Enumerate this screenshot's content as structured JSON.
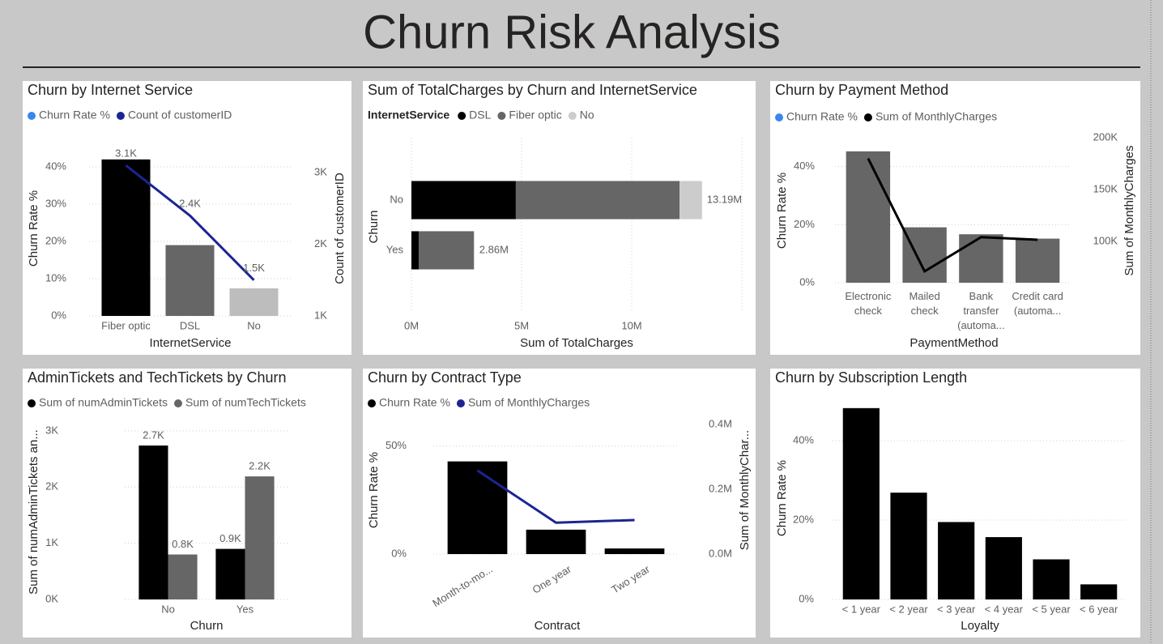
{
  "title": "Churn Risk Analysis",
  "chart_data": [
    {
      "type": "bar_line",
      "title": "Churn by Internet Service",
      "categories": [
        "Fiber optic",
        "DSL",
        "No"
      ],
      "series": [
        {
          "name": "Churn Rate %",
          "color": "#3a86f0",
          "bar_colors": [
            "#000000",
            "#666666",
            "#bdbdbd"
          ],
          "values": [
            42,
            19,
            7.4
          ],
          "axis": "y"
        },
        {
          "name": "Count of customerID",
          "color": "#1c2592",
          "kind": "line",
          "values": [
            3100,
            2400,
            1500
          ],
          "value_labels": [
            "3.1K",
            "2.4K",
            "1.5K"
          ],
          "axis": "y2"
        }
      ],
      "ylim": [
        0,
        45
      ],
      "yticks": [
        {
          "value": 0,
          "label": "0%"
        },
        {
          "value": 10,
          "label": "10%"
        },
        {
          "value": 20,
          "label": "20%"
        },
        {
          "value": 30,
          "label": "30%"
        },
        {
          "value": 40,
          "label": "40%"
        }
      ],
      "y2lim": [
        1000,
        3340
      ],
      "y2ticks": [
        {
          "value": 1000,
          "label": "1K"
        },
        {
          "value": 2000,
          "label": "2K"
        },
        {
          "value": 3000,
          "label": "3K"
        }
      ],
      "xlabel": "InternetService",
      "ylabel": "Churn Rate %",
      "y2label": "Count of customerID",
      "grid": true
    },
    {
      "type": "hbar_stacked",
      "title": "Sum of TotalCharges by Churn and InternetService",
      "legend_title": "InternetService",
      "categories": [
        "No",
        "Yes"
      ],
      "series": [
        {
          "name": "DSL",
          "color": "#000000",
          "values": [
            4740000,
            330000
          ]
        },
        {
          "name": "Fiber optic",
          "color": "#666666",
          "values": [
            7430000,
            2500000
          ]
        },
        {
          "name": "No",
          "color": "#cccccc",
          "values": [
            1020000,
            30000
          ]
        }
      ],
      "totals": [
        13190000,
        2860000
      ],
      "total_labels": [
        "13.19M",
        "2.86M"
      ],
      "xlim": [
        0,
        15000000
      ],
      "xticks": [
        {
          "value": 0,
          "label": "0M"
        },
        {
          "value": 5000000,
          "label": "5M"
        },
        {
          "value": 10000000,
          "label": "10M"
        }
      ],
      "xlabel": "Sum of TotalCharges",
      "ylabel": "Churn",
      "grid": true
    },
    {
      "type": "bar_line",
      "title": "Churn by Payment Method",
      "categories": [
        "Electronic check",
        "Mailed check",
        "Bank transfer (automa...",
        "Credit card (automa..."
      ],
      "series": [
        {
          "name": "Churn Rate %",
          "color": "#3a86f0",
          "bar_colors": [
            "#666666",
            "#666666",
            "#666666",
            "#666666"
          ],
          "values": [
            45.3,
            19.1,
            16.7,
            15.2
          ],
          "axis": "y"
        },
        {
          "name": "Sum of MonthlyCharges",
          "color": "#000000",
          "kind": "line",
          "values": [
            180000,
            71000,
            104000,
            101500
          ],
          "axis": "y2"
        }
      ],
      "ylim": [
        0,
        50
      ],
      "yticks": [
        {
          "value": 0,
          "label": "0%"
        },
        {
          "value": 20,
          "label": "20%"
        },
        {
          "value": 40,
          "label": "40%"
        }
      ],
      "y2lim": [
        60000,
        200000
      ],
      "y2ticks": [
        {
          "value": 100000,
          "label": "100K"
        },
        {
          "value": 150000,
          "label": "150K"
        },
        {
          "value": 200000,
          "label": "200K"
        }
      ],
      "xlabel": "PaymentMethod",
      "ylabel": "Churn Rate %",
      "y2label": "Sum of MonthlyCharges",
      "grid": true
    },
    {
      "type": "grouped_bar",
      "title": "AdminTickets and TechTickets by Churn",
      "categories": [
        "No",
        "Yes"
      ],
      "series": [
        {
          "name": "Sum of numAdminTickets",
          "color": "#000000",
          "values": [
            2740,
            900
          ],
          "value_labels": [
            "2.7K",
            "0.9K"
          ]
        },
        {
          "name": "Sum of numTechTickets",
          "color": "#666666",
          "values": [
            800,
            2190
          ],
          "value_labels": [
            "0.8K",
            "2.2K"
          ]
        }
      ],
      "ylim": [
        0,
        3100
      ],
      "yticks": [
        {
          "value": 0,
          "label": "0K"
        },
        {
          "value": 1000,
          "label": "1K"
        },
        {
          "value": 2000,
          "label": "2K"
        },
        {
          "value": 3000,
          "label": "3K"
        }
      ],
      "xlabel": "Churn",
      "ylabel": "Sum of numAdminTickets an...",
      "grid": true
    },
    {
      "type": "bar_line",
      "title": "Churn by Contract Type",
      "categories": [
        "Month-to-mo...",
        "One year",
        "Two year"
      ],
      "series": [
        {
          "name": "Churn Rate %",
          "color": "#000000",
          "values": [
            42.9,
            11.3,
            2.6
          ],
          "axis": "y"
        },
        {
          "name": "Sum of MonthlyCharges",
          "color": "#1c2592",
          "kind": "line",
          "values": [
            258000,
            97000,
            105000
          ],
          "axis": "y2"
        }
      ],
      "ylim": [
        0,
        60
      ],
      "yticks": [
        {
          "value": 0,
          "label": "0%"
        },
        {
          "value": 50,
          "label": "50%"
        }
      ],
      "y2lim": [
        0,
        400000
      ],
      "y2ticks": [
        {
          "value": 0,
          "label": "0.0M"
        },
        {
          "value": 200000,
          "label": "0.2M"
        },
        {
          "value": 400000,
          "label": "0.4M"
        }
      ],
      "xlabel": "Contract",
      "ylabel": "Churn Rate %",
      "y2label": "Sum of MonthlyChar...",
      "grid": true
    },
    {
      "type": "bar",
      "title": "Churn by Subscription Length",
      "categories": [
        "< 1 year",
        "< 2 year",
        "< 3 year",
        "< 4 year",
        "< 5 year",
        "< 6 year"
      ],
      "values": [
        48.2,
        26.9,
        19.5,
        15.7,
        10.1,
        3.8
      ],
      "color": "#000000",
      "ylim": [
        0,
        50
      ],
      "yticks": [
        {
          "value": 0,
          "label": "0%"
        },
        {
          "value": 20,
          "label": "20%"
        },
        {
          "value": 40,
          "label": "40%"
        }
      ],
      "xlabel": "Loyalty",
      "ylabel": "Churn Rate %",
      "grid": true
    }
  ]
}
